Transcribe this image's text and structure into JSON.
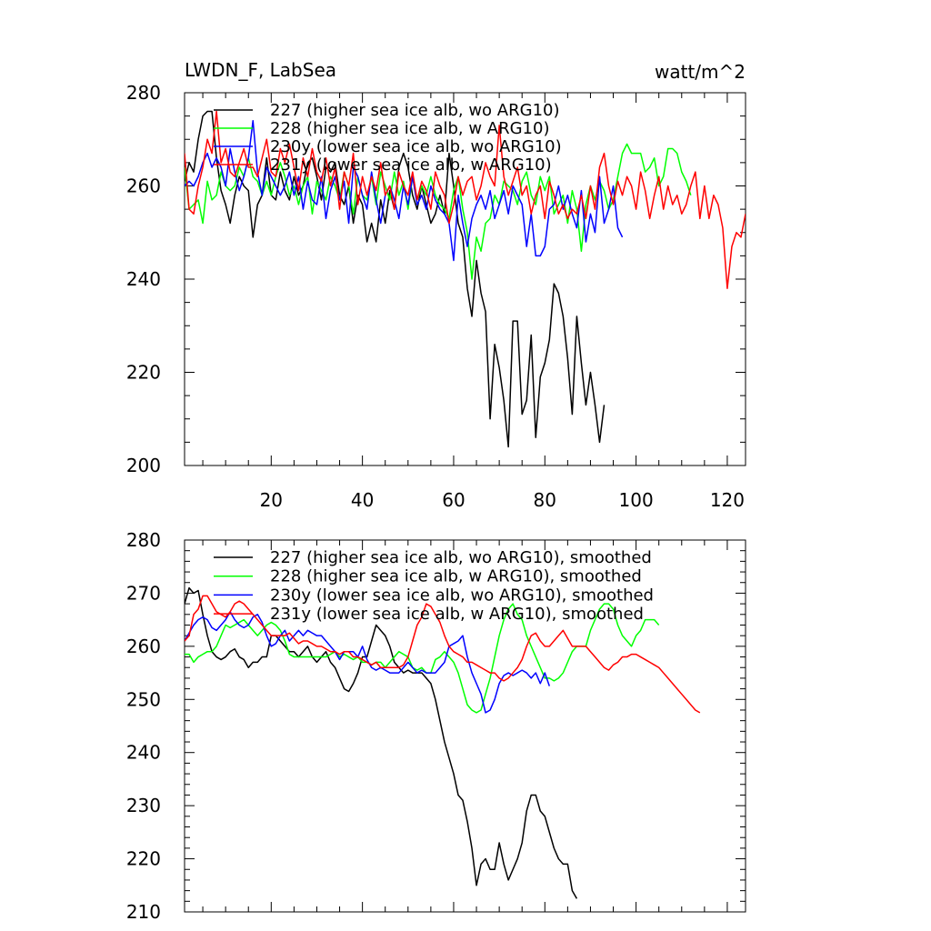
{
  "chart_data": [
    {
      "type": "line",
      "title": "LWDN_F, LabSea",
      "units": "watt/m^2",
      "xlim": [
        1,
        124
      ],
      "ylim": [
        200,
        280
      ],
      "xticks": [
        20,
        40,
        60,
        80,
        100,
        120
      ],
      "xtick_labels": [
        "20",
        "40",
        "60",
        "80",
        "100",
        "120"
      ],
      "yticks": [
        200,
        220,
        240,
        260,
        280
      ],
      "ytick_labels": [
        "200",
        "220",
        "240",
        "260",
        "280"
      ],
      "x_minor_step": 5,
      "y_minor_step": 5,
      "legend_position": "top-left",
      "series": [
        {
          "name": "227 (higher sea ice alb, wo ARG10)",
          "color": "#000000",
          "values": [
            261,
            265,
            263,
            270,
            275,
            276,
            276,
            266,
            259,
            256,
            252,
            258,
            262,
            260,
            259,
            249,
            256,
            258,
            266,
            258,
            257,
            263,
            259,
            257,
            262,
            258,
            260,
            265,
            266,
            262,
            257,
            264,
            263,
            265,
            258,
            256,
            260,
            252,
            258,
            256,
            248,
            252,
            248,
            257,
            252,
            259,
            255,
            264,
            267,
            264,
            258,
            255,
            260,
            256,
            252,
            254,
            258,
            254,
            267,
            260,
            252,
            249,
            238,
            232,
            244,
            237,
            233,
            210,
            226,
            221,
            214,
            204,
            231,
            231,
            211,
            214,
            228,
            206,
            219,
            222,
            227,
            239,
            237,
            232,
            223,
            211,
            232,
            222,
            213,
            220,
            213,
            205,
            213
          ]
        },
        {
          "name": "228 (higher sea ice alb, w ARG10)",
          "color": "#00ff00",
          "values": [
            264,
            255,
            256,
            257,
            252,
            261,
            257,
            258,
            263,
            260,
            259,
            260,
            264,
            262,
            266,
            262,
            261,
            258,
            261,
            258,
            262,
            265,
            262,
            258,
            260,
            256,
            260,
            262,
            254,
            261,
            259,
            257,
            262,
            260,
            257,
            263,
            260,
            254,
            262,
            258,
            257,
            262,
            256,
            263,
            260,
            257,
            263,
            258,
            261,
            255,
            262,
            257,
            260,
            258,
            262,
            258,
            256,
            255,
            253,
            259,
            262,
            255,
            250,
            240,
            249,
            246,
            252,
            253,
            258,
            256,
            261,
            260,
            259,
            256,
            261,
            263,
            258,
            256,
            262,
            259,
            262,
            254,
            256,
            258,
            252,
            259,
            255,
            246,
            256,
            260,
            257,
            261,
            259,
            255,
            257,
            262,
            267,
            269,
            267,
            267,
            267,
            263,
            264,
            266,
            260,
            262,
            268,
            268,
            267,
            263,
            261,
            258
          ]
        },
        {
          "name": "230y (lower sea ice alb, wo ARG10)",
          "color": "#0000ff",
          "values": [
            260,
            261,
            260,
            262,
            265,
            267,
            264,
            266,
            264,
            260,
            268,
            263,
            259,
            262,
            266,
            274,
            263,
            258,
            264,
            262,
            260,
            258,
            260,
            263,
            258,
            262,
            255,
            261,
            257,
            256,
            262,
            253,
            259,
            262,
            257,
            261,
            252,
            264,
            262,
            258,
            255,
            263,
            257,
            252,
            258,
            260,
            257,
            253,
            260,
            256,
            262,
            256,
            258,
            255,
            260,
            257,
            255,
            254,
            252,
            244,
            258,
            252,
            247,
            253,
            256,
            258,
            255,
            259,
            253,
            256,
            259,
            254,
            260,
            258,
            256,
            247,
            254,
            245,
            245,
            247,
            255,
            256,
            260,
            255,
            258,
            254,
            251,
            259,
            248,
            254,
            250,
            262,
            252,
            255,
            260,
            251,
            249
          ]
        },
        {
          "name": "231y (lower sea ice alb, w ARG10)",
          "color": "#ff0000",
          "values": [
            267,
            255,
            254,
            260,
            264,
            270,
            267,
            276,
            265,
            268,
            263,
            262,
            265,
            268,
            264,
            264,
            262,
            266,
            270,
            263,
            262,
            268,
            265,
            269,
            264,
            259,
            266,
            262,
            268,
            263,
            261,
            266,
            260,
            264,
            255,
            263,
            260,
            267,
            256,
            262,
            258,
            262,
            259,
            265,
            258,
            260,
            255,
            263,
            260,
            258,
            263,
            257,
            261,
            259,
            255,
            263,
            260,
            258,
            252,
            256,
            262,
            258,
            261,
            262,
            257,
            260,
            265,
            262,
            260,
            273,
            262,
            258,
            261,
            264,
            258,
            260,
            254,
            258,
            260,
            253,
            261,
            258,
            254,
            256,
            253,
            255,
            254,
            258,
            253,
            260,
            255,
            264,
            267,
            260,
            256,
            261,
            258,
            262,
            260,
            255,
            263,
            259,
            253,
            258,
            262,
            255,
            260,
            256,
            258,
            254,
            256,
            260,
            263,
            253,
            260,
            253,
            258,
            256,
            251,
            238,
            247,
            250,
            249,
            254
          ]
        }
      ]
    },
    {
      "type": "line",
      "xlim": [
        1,
        124
      ],
      "ylim": [
        210,
        280
      ],
      "xticks": [
        20,
        40,
        60,
        80,
        100,
        120
      ],
      "yticks": [
        210,
        220,
        230,
        240,
        250,
        260,
        270,
        280
      ],
      "ytick_labels": [
        "210",
        "220",
        "230",
        "240",
        "250",
        "260",
        "270",
        "280"
      ],
      "x_minor_step": 5,
      "y_minor_step": 2,
      "legend_position": "top-left",
      "series": [
        {
          "name": "227 (higher sea ice alb, wo ARG10), smoothed",
          "color": "#000000",
          "values": [
            268,
            271,
            270,
            270.5,
            266,
            262,
            259,
            258,
            257.5,
            258,
            259,
            259.5,
            258,
            257.5,
            256,
            257,
            257,
            258,
            258,
            262,
            262,
            261,
            260,
            259,
            259,
            258,
            259,
            260,
            258,
            257,
            258,
            259,
            257,
            256,
            254,
            252,
            251.5,
            253,
            255,
            258,
            258,
            261,
            264,
            263,
            262,
            260,
            257,
            256,
            255,
            255.5,
            255,
            255,
            255,
            254,
            253,
            250,
            246,
            242,
            239,
            236,
            232,
            231,
            227,
            222,
            215,
            219,
            220,
            218,
            218,
            223,
            219,
            216,
            218,
            220,
            223,
            229,
            232,
            232,
            229,
            228,
            225,
            222,
            220,
            219,
            219,
            214,
            212.5
          ]
        },
        {
          "name": "228 (higher sea ice alb, w ARG10), smoothed",
          "color": "#00ff00",
          "values": [
            258.5,
            258.5,
            257,
            258,
            258.5,
            259,
            259,
            260,
            262,
            264,
            263.5,
            264,
            264.5,
            265,
            264,
            263,
            262,
            263,
            264,
            264.5,
            264,
            263,
            261,
            258.5,
            258,
            258,
            258,
            258,
            258,
            258,
            258,
            258,
            258.5,
            259,
            258,
            258.5,
            258,
            257.5,
            258,
            257,
            257,
            256.5,
            257,
            257,
            256,
            257,
            258,
            259,
            258.5,
            258,
            256,
            255.5,
            256,
            255,
            255,
            257.5,
            258,
            259,
            258,
            257,
            255,
            252,
            249,
            248,
            247.5,
            248,
            251,
            254,
            258,
            262,
            265,
            267,
            268,
            266,
            265,
            262,
            260,
            258,
            256,
            254,
            254,
            253.5,
            254,
            255,
            257,
            259,
            260,
            260,
            260,
            263,
            265,
            267,
            268,
            268,
            267,
            264,
            262,
            261,
            260,
            262,
            263,
            265,
            265,
            265,
            264
          ]
        },
        {
          "name": "230y (lower sea ice alb, wo ARG10), smoothed",
          "color": "#0000ff",
          "values": [
            261,
            262.5,
            264,
            265,
            265.5,
            265,
            263.5,
            263,
            264,
            265,
            266.5,
            265,
            264,
            263.5,
            264,
            265.5,
            266,
            264.5,
            262,
            260,
            260.5,
            262,
            263,
            261,
            262,
            263,
            262,
            263,
            262.5,
            262,
            262,
            261,
            260,
            259,
            257.5,
            259,
            259,
            259,
            258,
            260,
            257.5,
            256,
            255.5,
            256,
            255.5,
            255,
            255,
            255,
            256,
            257,
            256,
            255,
            255.5,
            255,
            255,
            255,
            256,
            257,
            260,
            260.5,
            261,
            262,
            258,
            255,
            253,
            251,
            247.5,
            248,
            250,
            253,
            254.5,
            255,
            254.5,
            255,
            255.5,
            255,
            254,
            255,
            253,
            255,
            252.5
          ]
        },
        {
          "name": "231y (lower sea ice alb, w ARG10), smoothed",
          "color": "#ff0000",
          "values": [
            261,
            262,
            266,
            267,
            269.5,
            269.5,
            268,
            266.5,
            266,
            265.5,
            266.5,
            268,
            268.5,
            268,
            267,
            266,
            265,
            264,
            263,
            262,
            262,
            262,
            262,
            262.5,
            261.5,
            260.5,
            261,
            261,
            260.5,
            260,
            260,
            259.5,
            259,
            259,
            258.5,
            259,
            259,
            258,
            258,
            257.5,
            257,
            256.5,
            257,
            256,
            256,
            256,
            256,
            256,
            256.5,
            258,
            261,
            264,
            265.5,
            268,
            267.5,
            266,
            264.5,
            262,
            260,
            259,
            258.5,
            258,
            257,
            257,
            256.5,
            256,
            255.5,
            255,
            255,
            254,
            253.5,
            254,
            255,
            256,
            257.5,
            260,
            262,
            262.5,
            261,
            260,
            260,
            261,
            262,
            263,
            261.5,
            260,
            260,
            260,
            260,
            259,
            258,
            257,
            256,
            255.5,
            256.5,
            257,
            258,
            258,
            258.5,
            258.5,
            258,
            257.5,
            257,
            256.5,
            256,
            255,
            254,
            253,
            252,
            251,
            250,
            249,
            248,
            247.5
          ]
        }
      ]
    }
  ]
}
